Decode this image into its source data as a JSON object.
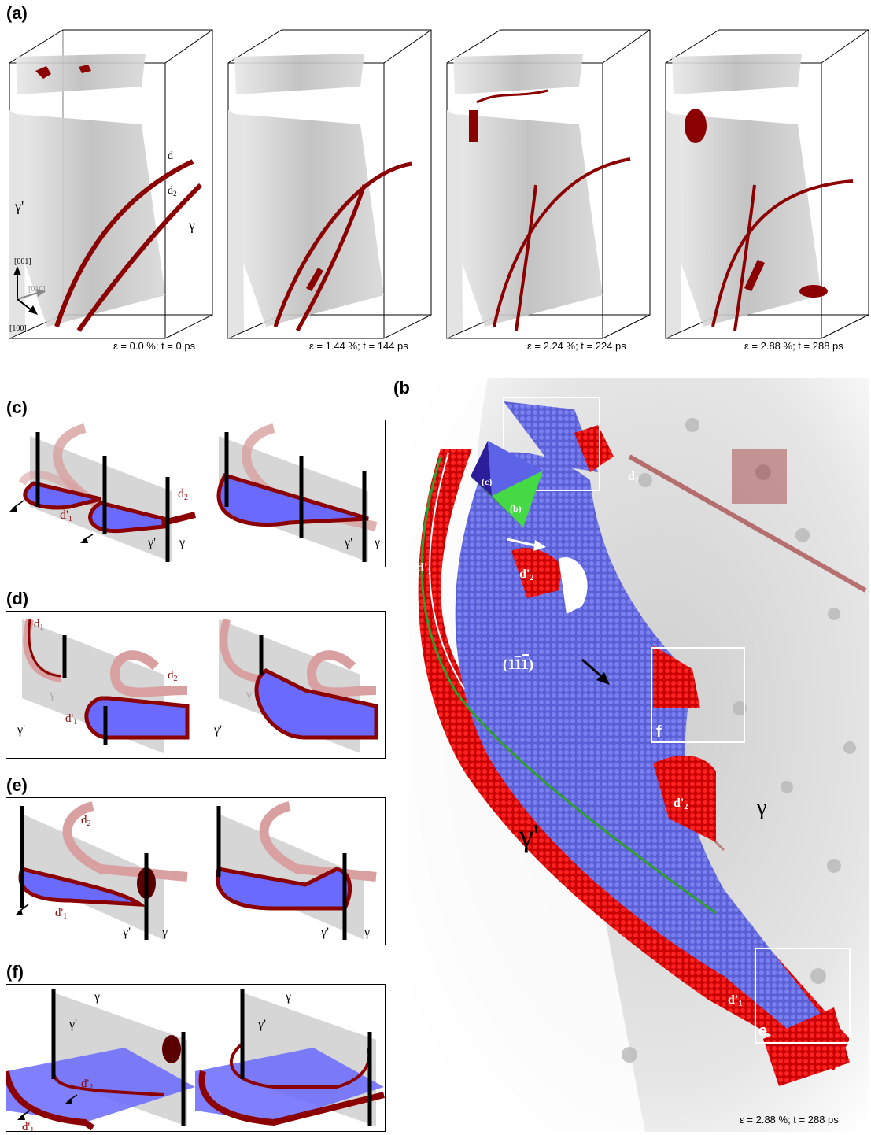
{
  "figure": {
    "panel_a": {
      "label": "(a)",
      "frames": [
        {
          "caption": "ε = 0.0 %; t = 0 ps"
        },
        {
          "caption": "ε = 1.44 %; t = 144 ps"
        },
        {
          "caption": "ε = 2.24 %; t = 224 ps"
        },
        {
          "caption": "ε = 2.88 %; t = 288 ps"
        }
      ],
      "labels": {
        "d1": "d",
        "d1_sub": "1",
        "d2": "d",
        "d2_sub": "2",
        "gamma_prime": "γ'",
        "gamma": "γ"
      },
      "axes": {
        "z": "[001]",
        "y": "[010]",
        "x": "[100]"
      }
    },
    "panel_b": {
      "label": "(b)",
      "caption": "ε = 2.88 %; t = 288 ps",
      "plane": "(1",
      "plane_bar": "11",
      "plane_end": ")",
      "gamma_prime": "γ'",
      "gamma": "γ",
      "d2": "d",
      "d2_sub": "2",
      "d1p": "d'",
      "d1p_sub": "1",
      "d2p": "d'",
      "d2p_sub": "2",
      "insets": [
        "d",
        "f",
        "e"
      ],
      "octahedron": {
        "c": "(c)",
        "b": "(b)"
      }
    },
    "panel_c": {
      "label": "(c)"
    },
    "panel_d": {
      "label": "(d)"
    },
    "panel_e": {
      "label": "(e)"
    },
    "panel_f": {
      "label": "(f)"
    },
    "colors": {
      "dislocation": "#8b0000",
      "fault": "#6a6aff",
      "matrix": "#d2d2d2",
      "green": "#2e9e2e"
    }
  }
}
